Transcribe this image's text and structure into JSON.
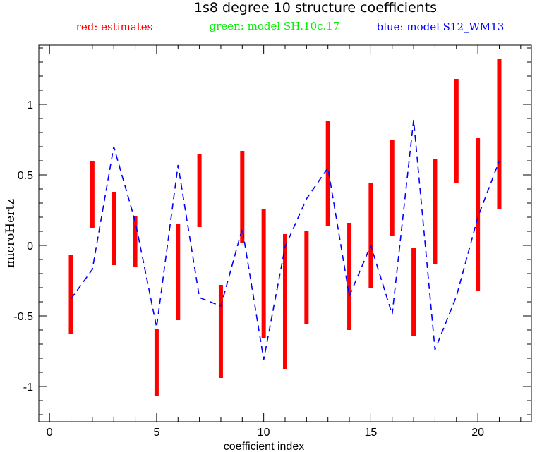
{
  "chart_data": {
    "type": "line",
    "title": "1s8 degree 10 structure coefficients",
    "legend": [
      {
        "label": "red: estimates",
        "color": "#ff0000"
      },
      {
        "label": "green: model SH.10c.17",
        "color": "#00ee00"
      },
      {
        "label": "blue: model S12_WM13",
        "color": "#0000ff"
      }
    ],
    "xlabel": "coefficient index",
    "ylabel": "microHertz",
    "xlim": [
      -0.5,
      22.5
    ],
    "ylim": [
      -1.25,
      1.42
    ],
    "xticks": [
      0,
      5,
      10,
      15,
      20
    ],
    "xtick_labels": [
      "0",
      "5",
      "10",
      "15",
      "20"
    ],
    "yticks": [
      -1,
      -0.5,
      0,
      0.5,
      1
    ],
    "ytick_labels": [
      "-1",
      "-0.5",
      "0",
      "0.5",
      "1"
    ],
    "x_minor_step": 1,
    "y_minor_step": 0.1,
    "grid": false,
    "series": [
      {
        "name": "red: estimates",
        "style": "errorbar",
        "color": "#ff0000",
        "x": [
          1,
          2,
          3,
          4,
          5,
          6,
          7,
          8,
          9,
          10,
          11,
          12,
          13,
          14,
          15,
          16,
          17,
          18,
          19,
          20,
          21
        ],
        "low": [
          -0.63,
          0.12,
          -0.14,
          -0.15,
          -1.07,
          -0.53,
          0.13,
          -0.94,
          0.02,
          -0.66,
          -0.88,
          -0.56,
          0.14,
          -0.6,
          -0.3,
          0.07,
          -0.64,
          -0.13,
          0.44,
          -0.32,
          0.26
        ],
        "high": [
          -0.07,
          0.6,
          0.38,
          0.21,
          -0.59,
          0.15,
          0.65,
          -0.28,
          0.67,
          0.26,
          0.08,
          0.1,
          0.88,
          0.16,
          0.44,
          0.75,
          -0.02,
          0.61,
          1.18,
          0.76,
          1.32
        ]
      },
      {
        "name": "blue: model S12_WM13",
        "style": "dashed-line",
        "color": "#0000ff",
        "x": [
          1,
          2,
          3,
          4,
          5,
          6,
          7,
          8,
          9,
          10,
          11,
          12,
          13,
          14,
          15,
          16,
          17,
          18,
          19,
          20,
          21
        ],
        "y": [
          -0.38,
          -0.17,
          0.7,
          0.17,
          -0.58,
          0.57,
          -0.37,
          -0.43,
          0.12,
          -0.81,
          -0.01,
          0.33,
          0.55,
          -0.36,
          0.0,
          -0.49,
          0.89,
          -0.74,
          -0.36,
          0.2,
          0.6
        ]
      }
    ]
  }
}
